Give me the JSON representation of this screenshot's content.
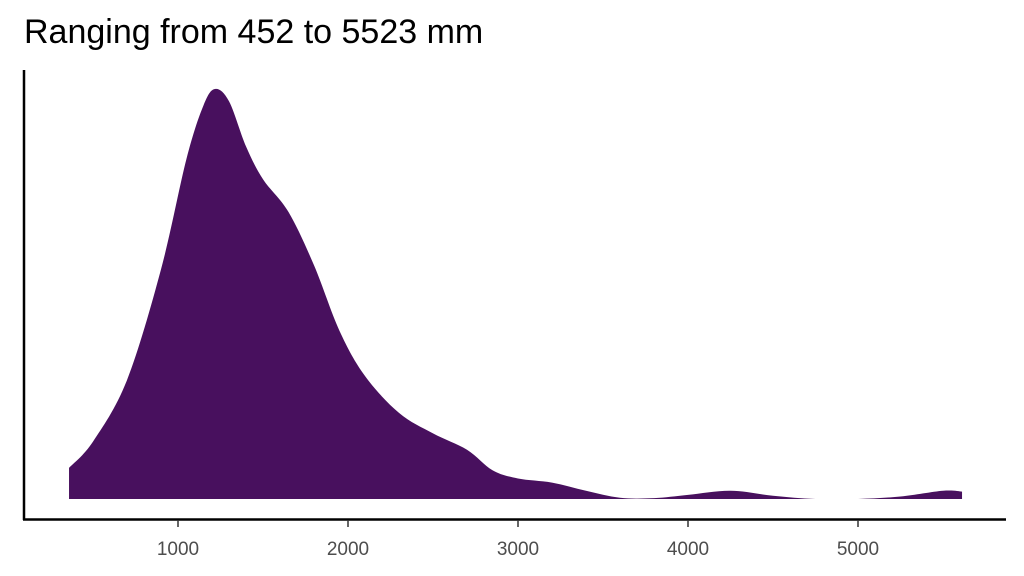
{
  "title": "Ranging from 452 to 5523 mm",
  "colors": {
    "fill": "#48105E",
    "axis": "#000000",
    "tick_label": "#4d4d4d",
    "background": "#ffffff"
  },
  "x_axis": {
    "ticks": [
      {
        "value": 1000,
        "label": "1000"
      },
      {
        "value": 2000,
        "label": "2000"
      },
      {
        "value": 3000,
        "label": "3000"
      },
      {
        "value": 4000,
        "label": "4000"
      },
      {
        "value": 5000,
        "label": "5000"
      }
    ]
  },
  "chart_data": {
    "type": "area",
    "subtype": "density",
    "title": "Ranging from 452 to 5523 mm",
    "xlabel": "",
    "ylabel": "",
    "xlim": [
      359,
      5612
    ],
    "x_ticks": [
      1000,
      2000,
      3000,
      4000,
      5000
    ],
    "y_ticks": [],
    "grid": false,
    "legend": null,
    "fill_color": "#48105E",
    "density_relative": {
      "x": [
        359,
        500,
        700,
        900,
        1050,
        1150,
        1218,
        1300,
        1400,
        1500,
        1650,
        1800,
        1950,
        2100,
        2300,
        2500,
        2700,
        2850,
        3000,
        3200,
        3400,
        3600,
        3800,
        4000,
        4250,
        4500,
        4750,
        5000,
        5250,
        5500,
        5612
      ],
      "y": [
        0.076,
        0.14,
        0.29,
        0.56,
        0.83,
        0.96,
        1.0,
        0.97,
        0.86,
        0.78,
        0.7,
        0.57,
        0.41,
        0.3,
        0.21,
        0.16,
        0.12,
        0.07,
        0.05,
        0.04,
        0.02,
        0.003,
        0.002,
        0.01,
        0.02,
        0.008,
        0.0,
        0.0,
        0.006,
        0.02,
        0.018
      ]
    }
  }
}
